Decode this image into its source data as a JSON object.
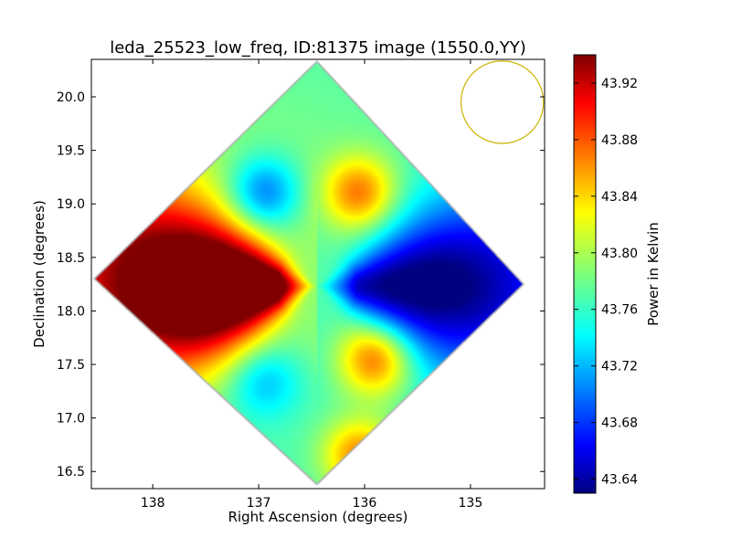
{
  "chart_data": {
    "type": "heatmap",
    "title": "leda_25523_low_freq, ID:81375 image (1550.0,YY)",
    "xlabel": "Right Ascension (degrees)",
    "ylabel": "Declination (degrees)",
    "x_reversed": true,
    "xlim": [
      138.58,
      134.3
    ],
    "ylim": [
      16.34,
      20.35
    ],
    "x_ticks": [
      138,
      137,
      136,
      135
    ],
    "y_ticks": [
      16.5,
      17.0,
      17.5,
      18.0,
      18.5,
      19.0,
      19.5,
      20.0
    ],
    "x_tick_labels": [
      "138",
      "137",
      "136",
      "135"
    ],
    "y_tick_labels": [
      "16.5",
      "17.0",
      "17.5",
      "18.0",
      "18.5",
      "19.0",
      "19.5",
      "20.0"
    ],
    "colormap": "jet",
    "colorbar": {
      "label": "Power in Kelvin",
      "vmin": 43.63,
      "vmax": 43.94,
      "ticks": [
        43.64,
        43.68,
        43.72,
        43.76,
        43.8,
        43.84,
        43.88,
        43.92
      ],
      "tick_labels": [
        "43.64",
        "43.68",
        "43.72",
        "43.76",
        "43.80",
        "43.84",
        "43.88",
        "43.92"
      ]
    },
    "map_center": {
      "ra": 136.45,
      "dec": 18.23
    },
    "map_footprint": {
      "shape": "diamond",
      "vertices": [
        {
          "ra": 136.45,
          "dec": 20.33
        },
        {
          "ra": 134.5,
          "dec": 18.25
        },
        {
          "ra": 136.45,
          "dec": 16.38
        },
        {
          "ra": 138.55,
          "dec": 18.3
        }
      ]
    },
    "background_level": 43.77,
    "features": [
      {
        "name": "hot lobe",
        "ra": 137.3,
        "dec": 18.12,
        "value": 43.92
      },
      {
        "name": "cold lobe",
        "ra": 135.5,
        "dec": 18.35,
        "value": 43.67
      },
      {
        "name": "cool band upper",
        "ra": 136.95,
        "dec": 19.1,
        "value": 43.69
      },
      {
        "name": "cool band lower",
        "ra": 136.95,
        "dec": 17.35,
        "value": 43.72
      },
      {
        "name": "warm streak upper",
        "ra": 136.05,
        "dec": 19.1,
        "value": 43.86
      },
      {
        "name": "warm streak lower",
        "ra": 135.9,
        "dec": 17.55,
        "value": 43.87
      },
      {
        "name": "warm patch bottom",
        "ra": 136.05,
        "dec": 16.65,
        "value": 43.86
      }
    ],
    "beam_marker": {
      "shape": "circle",
      "ra": 134.7,
      "dec": 19.95,
      "radius_deg": 0.33,
      "color": "#c8b400"
    }
  }
}
